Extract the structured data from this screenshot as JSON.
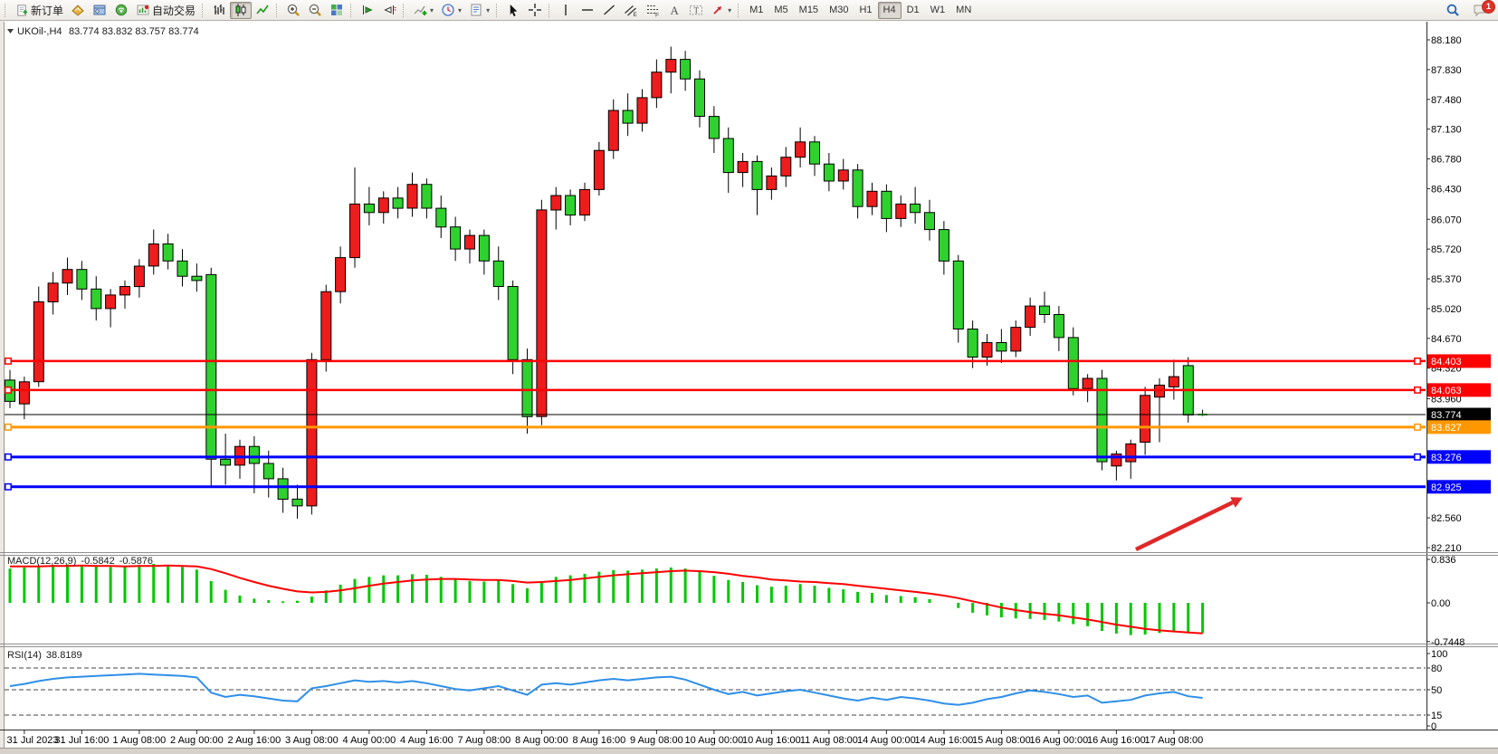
{
  "toolbar": {
    "groups": [
      {
        "name": "trade",
        "items": [
          {
            "name": "new-order",
            "icon": "new-order-icon",
            "label": "新订单"
          },
          {
            "name": "market-watch",
            "icon": "market-watch-icon"
          },
          {
            "name": "navigator",
            "icon": "navigator-icon"
          },
          {
            "name": "signals",
            "icon": "signals-icon"
          },
          {
            "name": "auto-trading",
            "icon": "auto-trading-icon",
            "label": "自动交易"
          }
        ]
      },
      {
        "name": "chart-type",
        "items": [
          {
            "name": "bar-chart",
            "icon": "bar-chart-icon"
          },
          {
            "name": "candlestick-chart",
            "icon": "candlestick-icon",
            "active": true
          },
          {
            "name": "line-chart",
            "icon": "line-chart-icon"
          }
        ]
      },
      {
        "name": "zoom",
        "items": [
          {
            "name": "zoom-in",
            "icon": "zoom-in-icon"
          },
          {
            "name": "zoom-out",
            "icon": "zoom-out-icon"
          },
          {
            "name": "tile-windows",
            "icon": "tile-windows-icon"
          }
        ]
      },
      {
        "name": "scroll",
        "items": [
          {
            "name": "auto-scroll",
            "icon": "auto-scroll-icon"
          },
          {
            "name": "chart-shift",
            "icon": "chart-shift-icon"
          }
        ]
      },
      {
        "name": "menus",
        "items": [
          {
            "name": "indicators",
            "icon": "indicators-icon",
            "caret": true
          },
          {
            "name": "periods",
            "icon": "clock-icon",
            "caret": true
          },
          {
            "name": "templates",
            "icon": "templates-icon",
            "caret": true
          }
        ]
      },
      {
        "name": "pointer",
        "items": [
          {
            "name": "cursor",
            "icon": "cursor-icon"
          },
          {
            "name": "crosshair",
            "icon": "crosshair-icon"
          }
        ]
      },
      {
        "name": "drawing",
        "items": [
          {
            "name": "vertical-line",
            "icon": "vline-icon"
          },
          {
            "name": "horizontal-line",
            "icon": "hline-icon"
          },
          {
            "name": "trendline",
            "icon": "trendline-icon"
          },
          {
            "name": "equidistant-channel",
            "icon": "channel-icon"
          },
          {
            "name": "fibonacci",
            "icon": "fibonacci-icon"
          },
          {
            "name": "text",
            "icon": "text-icon"
          },
          {
            "name": "text-label",
            "icon": "label-icon"
          },
          {
            "name": "arrows",
            "icon": "arrows-icon",
            "caret": true
          }
        ]
      }
    ],
    "timeframes": [
      "M1",
      "M5",
      "M15",
      "M30",
      "H1",
      "H4",
      "D1",
      "W1",
      "MN"
    ],
    "active_timeframe": "H4",
    "notification_badge": "1"
  },
  "chart": {
    "symbol_period": "UKOil-,H4",
    "ohlc": "83.774 83.832 83.757 83.774"
  },
  "chart_data": {
    "type": "candlestick",
    "symbol": "UKOil-",
    "timeframe": "H4",
    "colors": {
      "up": "#ee1c1c",
      "down": "#2fd12f",
      "wick": "#000000",
      "macd_histogram": "#00c800",
      "macd_signal": "#ff0000",
      "rsi_line": "#2f8fe8"
    },
    "y_axis": {
      "ticks": [
        88.18,
        87.83,
        87.48,
        87.13,
        86.78,
        86.43,
        86.07,
        85.72,
        85.37,
        85.02,
        84.67,
        84.32,
        83.96,
        82.56,
        82.21
      ]
    },
    "x_axis": {
      "labels": [
        "31 Jul 2023",
        "31 Jul 16:00",
        "1 Aug 08:00",
        "2 Aug 00:00",
        "2 Aug 16:00",
        "3 Aug 08:00",
        "4 Aug 00:00",
        "4 Aug 16:00",
        "7 Aug 08:00",
        "8 Aug 00:00",
        "8 Aug 16:00",
        "9 Aug 08:00",
        "10 Aug 00:00",
        "10 Aug 16:00",
        "11 Aug 08:00",
        "14 Aug 00:00",
        "14 Aug 16:00",
        "15 Aug 08:00",
        "16 Aug 00:00",
        "16 Aug 16:00",
        "17 Aug 08:00"
      ],
      "first_label_bar_index": 1,
      "bars_per_label": 4
    },
    "bars": [
      [
        84.18,
        84.3,
        83.85,
        83.93
      ],
      [
        83.9,
        84.22,
        83.72,
        84.16
      ],
      [
        84.16,
        85.28,
        84.1,
        85.1
      ],
      [
        85.1,
        85.45,
        84.95,
        85.32
      ],
      [
        85.32,
        85.62,
        85.18,
        85.48
      ],
      [
        85.48,
        85.58,
        85.12,
        85.25
      ],
      [
        85.25,
        85.4,
        84.88,
        85.02
      ],
      [
        85.02,
        85.25,
        84.8,
        85.18
      ],
      [
        85.18,
        85.35,
        85.02,
        85.28
      ],
      [
        85.28,
        85.6,
        85.15,
        85.52
      ],
      [
        85.52,
        85.95,
        85.42,
        85.78
      ],
      [
        85.78,
        85.9,
        85.48,
        85.58
      ],
      [
        85.58,
        85.72,
        85.28,
        85.4
      ],
      [
        85.4,
        85.55,
        85.22,
        85.35
      ],
      [
        85.42,
        85.5,
        82.92,
        83.25
      ],
      [
        83.25,
        83.55,
        82.95,
        83.18
      ],
      [
        83.18,
        83.48,
        83.02,
        83.4
      ],
      [
        83.4,
        83.52,
        82.85,
        83.2
      ],
      [
        83.2,
        83.35,
        82.8,
        83.02
      ],
      [
        83.02,
        83.15,
        82.62,
        82.78
      ],
      [
        82.78,
        82.95,
        82.55,
        82.7
      ],
      [
        82.7,
        84.5,
        82.6,
        84.42
      ],
      [
        84.42,
        85.3,
        84.28,
        85.22
      ],
      [
        85.22,
        85.75,
        85.08,
        85.62
      ],
      [
        85.62,
        86.68,
        85.5,
        86.25
      ],
      [
        86.25,
        86.45,
        86.0,
        86.15
      ],
      [
        86.15,
        86.4,
        86.02,
        86.32
      ],
      [
        86.32,
        86.45,
        86.08,
        86.2
      ],
      [
        86.2,
        86.62,
        86.1,
        86.48
      ],
      [
        86.48,
        86.55,
        86.08,
        86.2
      ],
      [
        86.2,
        86.35,
        85.85,
        85.98
      ],
      [
        85.98,
        86.1,
        85.58,
        85.72
      ],
      [
        85.72,
        85.95,
        85.55,
        85.88
      ],
      [
        85.88,
        85.95,
        85.42,
        85.58
      ],
      [
        85.58,
        85.75,
        85.12,
        85.28
      ],
      [
        85.28,
        85.35,
        84.25,
        84.42
      ],
      [
        84.42,
        84.55,
        83.55,
        83.75
      ],
      [
        83.75,
        86.3,
        83.65,
        86.18
      ],
      [
        86.18,
        86.45,
        85.95,
        86.35
      ],
      [
        86.35,
        86.42,
        86.0,
        86.12
      ],
      [
        86.12,
        86.5,
        86.05,
        86.42
      ],
      [
        86.42,
        86.98,
        86.35,
        86.88
      ],
      [
        86.88,
        87.48,
        86.78,
        87.35
      ],
      [
        87.35,
        87.55,
        87.05,
        87.2
      ],
      [
        87.2,
        87.6,
        87.1,
        87.5
      ],
      [
        87.5,
        87.95,
        87.38,
        87.8
      ],
      [
        87.8,
        88.1,
        87.55,
        87.95
      ],
      [
        87.95,
        88.05,
        87.58,
        87.72
      ],
      [
        87.72,
        87.82,
        87.15,
        87.28
      ],
      [
        87.28,
        87.4,
        86.85,
        87.02
      ],
      [
        87.02,
        87.15,
        86.38,
        86.62
      ],
      [
        86.62,
        86.85,
        86.45,
        86.75
      ],
      [
        86.75,
        86.82,
        86.12,
        86.42
      ],
      [
        86.42,
        86.68,
        86.3,
        86.58
      ],
      [
        86.58,
        86.92,
        86.45,
        86.8
      ],
      [
        86.8,
        87.15,
        86.68,
        86.98
      ],
      [
        86.98,
        87.05,
        86.58,
        86.72
      ],
      [
        86.72,
        86.85,
        86.4,
        86.52
      ],
      [
        86.52,
        86.78,
        86.42,
        86.65
      ],
      [
        86.65,
        86.72,
        86.08,
        86.22
      ],
      [
        86.22,
        86.5,
        86.12,
        86.4
      ],
      [
        86.4,
        86.48,
        85.92,
        86.08
      ],
      [
        86.08,
        86.35,
        85.98,
        86.25
      ],
      [
        86.25,
        86.45,
        86.02,
        86.15
      ],
      [
        86.15,
        86.3,
        85.82,
        85.95
      ],
      [
        85.95,
        86.05,
        85.42,
        85.58
      ],
      [
        85.58,
        85.65,
        84.62,
        84.78
      ],
      [
        84.78,
        84.88,
        84.32,
        84.45
      ],
      [
        84.45,
        84.72,
        84.35,
        84.62
      ],
      [
        84.62,
        84.78,
        84.38,
        84.52
      ],
      [
        84.52,
        84.88,
        84.45,
        84.8
      ],
      [
        84.8,
        85.15,
        84.7,
        85.05
      ],
      [
        85.05,
        85.22,
        84.85,
        84.95
      ],
      [
        84.95,
        85.05,
        84.52,
        84.68
      ],
      [
        84.68,
        84.8,
        84.0,
        84.08
      ],
      [
        84.08,
        84.25,
        83.92,
        84.2
      ],
      [
        84.2,
        84.3,
        83.12,
        83.22
      ],
      [
        83.17,
        83.35,
        83.0,
        83.31
      ],
      [
        83.22,
        83.48,
        83.02,
        83.43
      ],
      [
        83.45,
        84.1,
        83.3,
        84.0
      ],
      [
        83.98,
        84.2,
        83.45,
        84.12
      ],
      [
        84.1,
        84.42,
        83.95,
        84.22
      ],
      [
        84.35,
        84.45,
        83.68,
        83.77
      ],
      [
        83.774,
        83.832,
        83.757,
        83.774
      ]
    ],
    "hlines": [
      {
        "price": 84.403,
        "label": "84.403",
        "color": "#ff0000",
        "width": 2.5,
        "anchor_left": true,
        "anchor_right": true
      },
      {
        "price": 84.063,
        "label": "84.063",
        "color": "#ff0000",
        "width": 2.5,
        "anchor_left": true,
        "anchor_right": true
      },
      {
        "price": 83.774,
        "label": "83.774",
        "color": "#000000",
        "width": 1,
        "anchor_left": false,
        "anchor_right": false,
        "role": "current-price"
      },
      {
        "price": 83.627,
        "label": "83.627",
        "color": "#ff9800",
        "width": 3,
        "anchor_left": true,
        "anchor_right": true
      },
      {
        "price": 83.276,
        "label": "83.276",
        "color": "#0000ff",
        "width": 3,
        "anchor_left": true,
        "anchor_right": true
      },
      {
        "price": 82.925,
        "label": "82.925",
        "color": "#0000ff",
        "width": 3,
        "anchor_left": true,
        "anchor_right": false
      }
    ],
    "macd": {
      "label": "MACD(12,26,9)",
      "main_value": "-0.5842",
      "signal_value": "-0.5876",
      "y_ticks": [
        [
          0.836,
          "0.836"
        ],
        [
          0,
          "0.00"
        ],
        [
          -0.7448,
          "-0.7448"
        ]
      ],
      "histogram": [
        0.66,
        0.68,
        0.71,
        0.73,
        0.74,
        0.73,
        0.71,
        0.69,
        0.7,
        0.73,
        0.75,
        0.73,
        0.69,
        0.64,
        0.42,
        0.25,
        0.14,
        0.08,
        0.05,
        0.03,
        0.04,
        0.12,
        0.24,
        0.35,
        0.46,
        0.5,
        0.53,
        0.53,
        0.55,
        0.54,
        0.5,
        0.45,
        0.42,
        0.41,
        0.43,
        0.36,
        0.28,
        0.42,
        0.5,
        0.53,
        0.56,
        0.6,
        0.63,
        0.62,
        0.64,
        0.66,
        0.68,
        0.66,
        0.6,
        0.52,
        0.44,
        0.4,
        0.34,
        0.31,
        0.33,
        0.36,
        0.33,
        0.29,
        0.26,
        0.21,
        0.19,
        0.15,
        0.13,
        0.11,
        0.07,
        0.0,
        -0.1,
        -0.19,
        -0.24,
        -0.28,
        -0.3,
        -0.31,
        -0.33,
        -0.36,
        -0.41,
        -0.45,
        -0.54,
        -0.59,
        -0.62,
        -0.61,
        -0.58,
        -0.56,
        -0.57,
        -0.5842
      ],
      "signal": [
        0.7,
        0.7,
        0.7,
        0.71,
        0.71,
        0.72,
        0.71,
        0.71,
        0.7,
        0.71,
        0.71,
        0.72,
        0.71,
        0.7,
        0.65,
        0.57,
        0.48,
        0.4,
        0.33,
        0.27,
        0.22,
        0.2,
        0.21,
        0.24,
        0.28,
        0.33,
        0.37,
        0.4,
        0.43,
        0.45,
        0.46,
        0.46,
        0.45,
        0.44,
        0.44,
        0.42,
        0.39,
        0.4,
        0.42,
        0.44,
        0.47,
        0.5,
        0.53,
        0.55,
        0.57,
        0.59,
        0.61,
        0.62,
        0.61,
        0.59,
        0.56,
        0.52,
        0.49,
        0.45,
        0.43,
        0.41,
        0.4,
        0.38,
        0.36,
        0.33,
        0.3,
        0.27,
        0.24,
        0.21,
        0.18,
        0.14,
        0.09,
        0.03,
        -0.03,
        -0.09,
        -0.14,
        -0.18,
        -0.21,
        -0.24,
        -0.28,
        -0.32,
        -0.37,
        -0.42,
        -0.46,
        -0.5,
        -0.53,
        -0.55,
        -0.57,
        -0.5876
      ]
    },
    "rsi": {
      "label": "RSI(14)",
      "value_display": "38.8189",
      "levels": [
        80,
        50,
        15
      ],
      "y_ticks": [
        [
          100,
          "100"
        ],
        [
          80,
          "80"
        ],
        [
          50,
          "50"
        ],
        [
          15,
          "15"
        ],
        [
          0,
          "0"
        ]
      ],
      "values": [
        55,
        58,
        62,
        65,
        67,
        68,
        69,
        70,
        71,
        72,
        71,
        70,
        69,
        67,
        46,
        40,
        43,
        41,
        38,
        35,
        34,
        52,
        55,
        59,
        63,
        61,
        62,
        60,
        62,
        59,
        55,
        51,
        49,
        52,
        55,
        49,
        43,
        57,
        59,
        57,
        60,
        63,
        65,
        63,
        65,
        67,
        68,
        64,
        57,
        50,
        44,
        47,
        42,
        45,
        48,
        50,
        46,
        42,
        38,
        35,
        39,
        36,
        40,
        38,
        35,
        31,
        29,
        32,
        37,
        40,
        45,
        49,
        47,
        44,
        40,
        42,
        32,
        34,
        36,
        42,
        45,
        47,
        41,
        38.8
      ]
    },
    "annotation_arrow": {
      "color": "#e02828",
      "from": [
        1255,
        607
      ],
      "to": [
        1362,
        555
      ]
    }
  }
}
